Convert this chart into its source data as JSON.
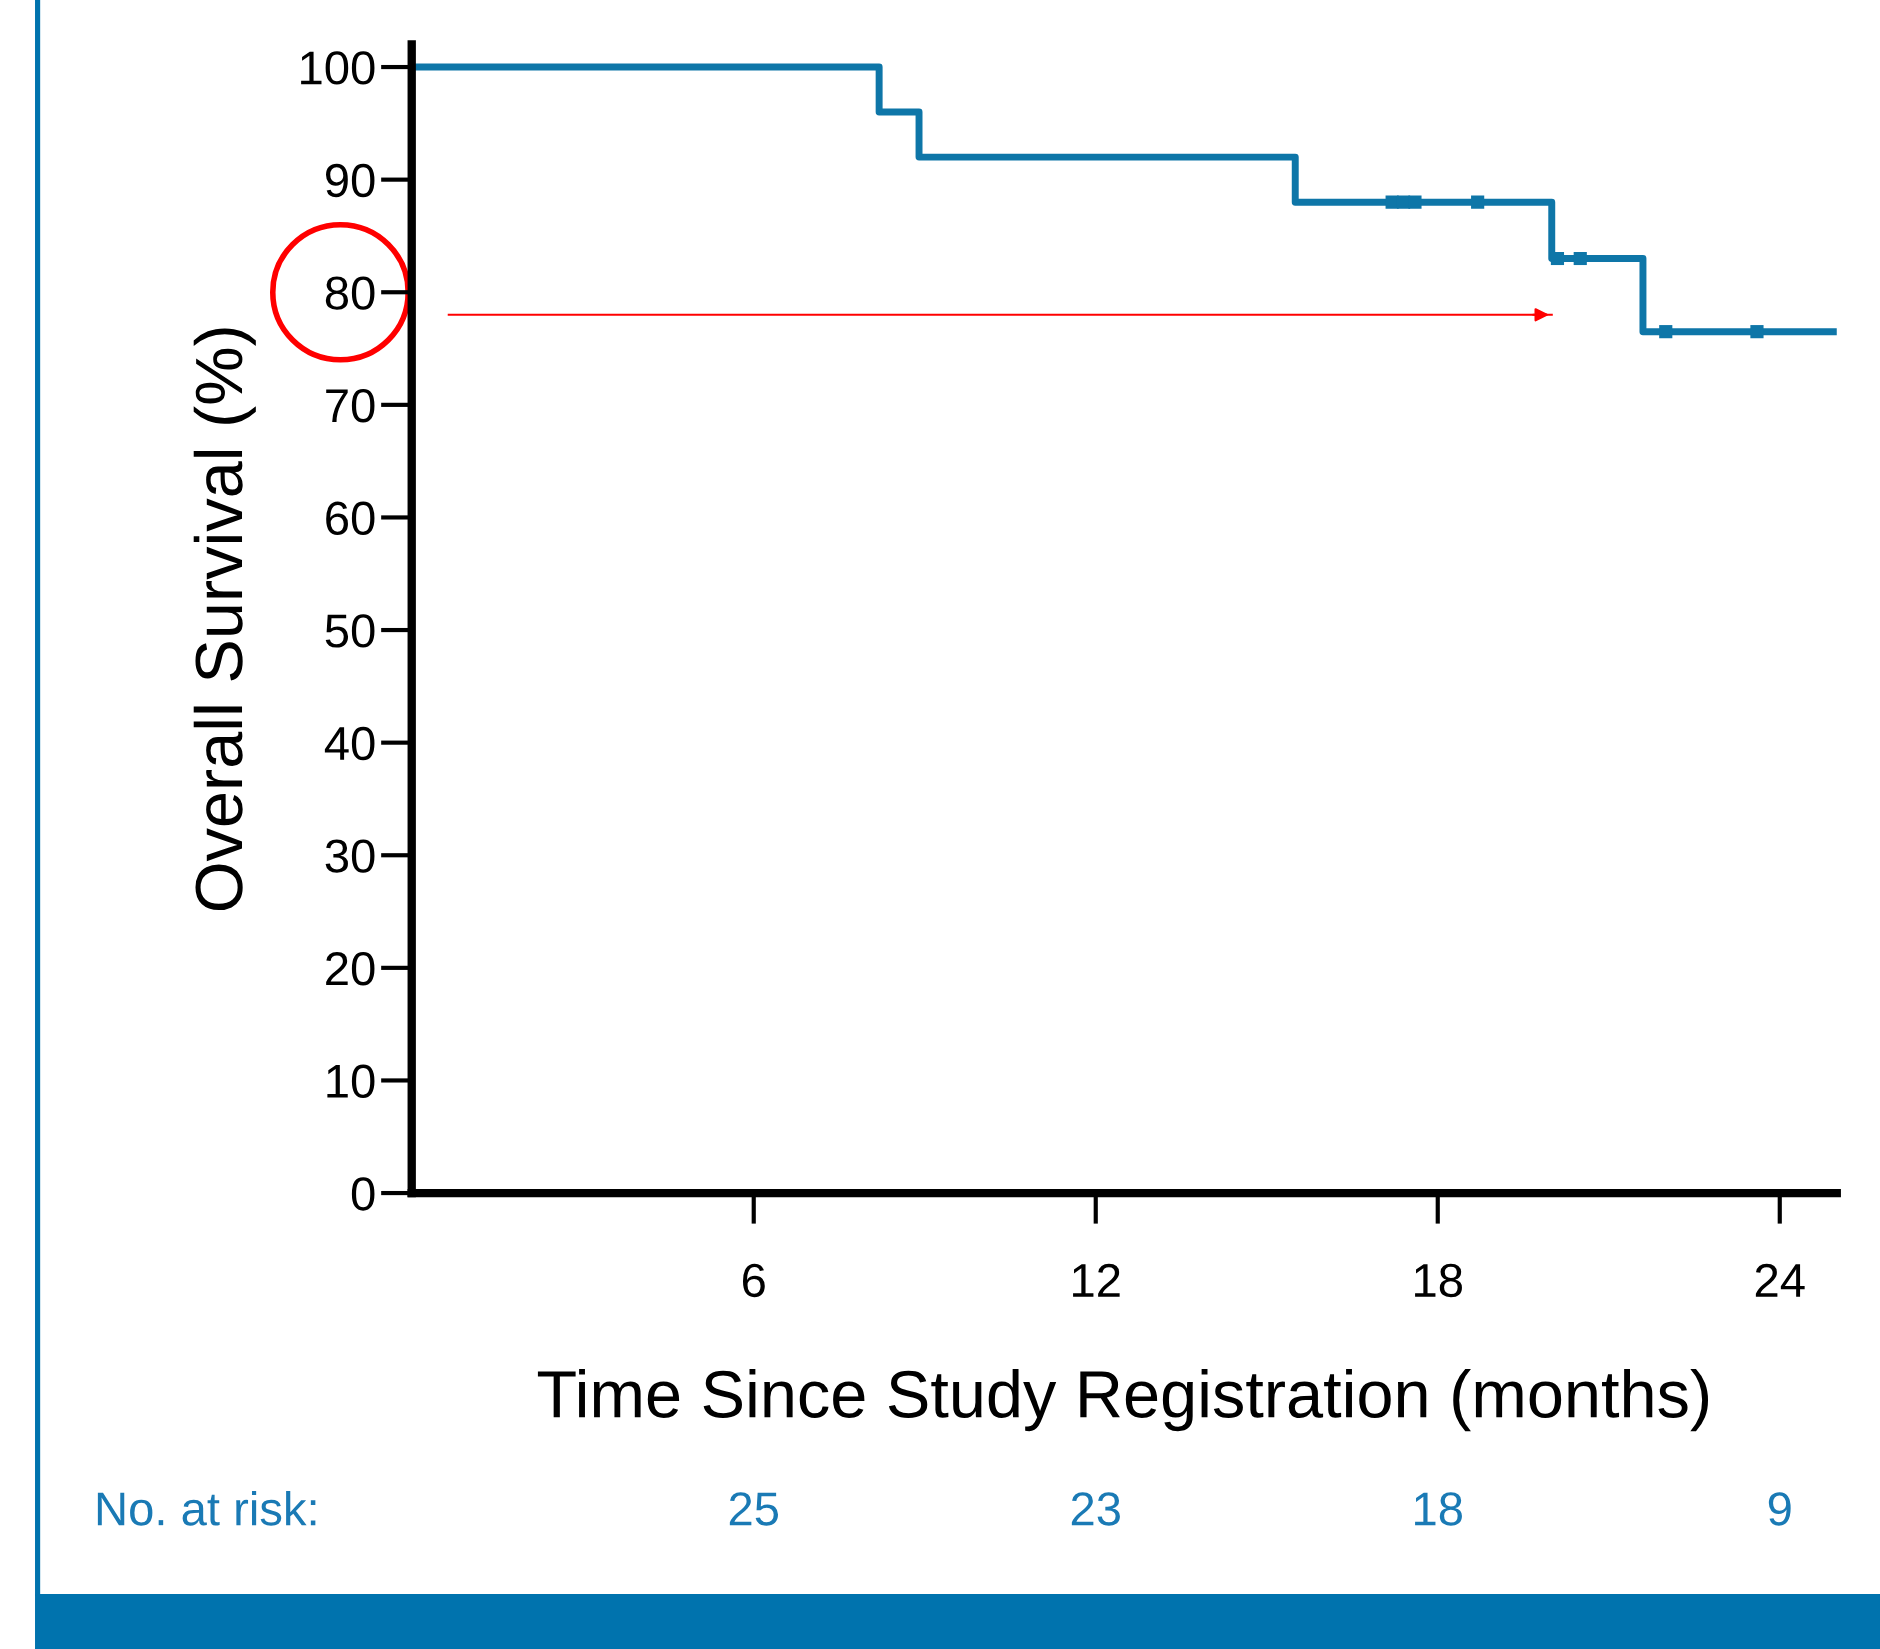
{
  "chart_data": {
    "type": "step",
    "xlabel": "Time Since Study Registration (months)",
    "ylabel": "Overall Survival (%)",
    "xlim": [
      0,
      25
    ],
    "xticks": [
      6,
      12,
      18,
      24
    ],
    "ylim": [
      0,
      102
    ],
    "yticks": [
      0,
      10,
      20,
      30,
      40,
      50,
      60,
      70,
      80,
      90,
      100
    ],
    "grid": false,
    "series": [
      {
        "color": "#0e76a8",
        "marker": "none",
        "x": [
          0,
          8.2,
          8.9,
          15.5,
          20.0,
          21.6,
          25
        ],
        "values": [
          100,
          96,
          92,
          88,
          83,
          76.5,
          76.5
        ]
      },
      {
        "type": "scatter",
        "color": "#0e76a8",
        "marker": "square",
        "x": [
          17.2,
          17.4,
          17.6,
          18.7,
          20.1,
          20.5,
          22.0,
          23.6
        ],
        "values": [
          88,
          88,
          88,
          88,
          83,
          83,
          76.5,
          76.5
        ]
      }
    ],
    "ref_lines": [
      {
        "axis": "y",
        "value": 78,
        "color": "#ff0000"
      }
    ],
    "annotations": [
      "No. at risk:",
      "25",
      "23",
      "18",
      "9"
    ]
  }
}
